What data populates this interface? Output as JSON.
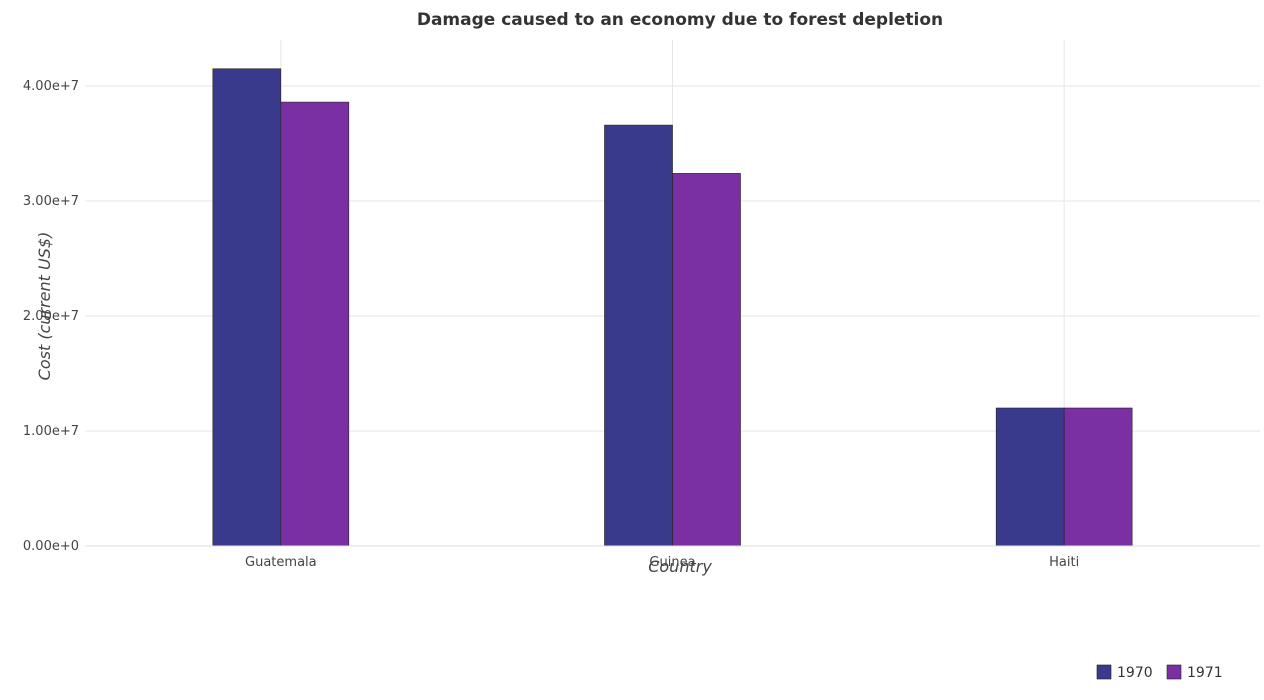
{
  "chart_data": {
    "type": "bar",
    "title": "Damage caused to an economy due to forest depletion",
    "xlabel": "Country",
    "ylabel": "Cost (current US$)",
    "categories": [
      "Guatemala",
      "Guinea",
      "Haiti"
    ],
    "series": [
      {
        "name": "1970",
        "color": "#3a3a8c",
        "values": [
          41500000,
          36600000,
          12000000
        ]
      },
      {
        "name": "1971",
        "color": "#7a2fa3",
        "values": [
          38600000,
          32400000,
          12000000
        ]
      }
    ],
    "ylim": [
      0,
      44000000
    ],
    "yticks": [
      0,
      10000000,
      20000000,
      30000000,
      40000000
    ],
    "ytick_labels": [
      "0.00e+0",
      "1.00e+7",
      "2.00e+7",
      "3.00e+7",
      "4.00e+7"
    ],
    "grid": true,
    "legend_position": "bottom-right"
  }
}
